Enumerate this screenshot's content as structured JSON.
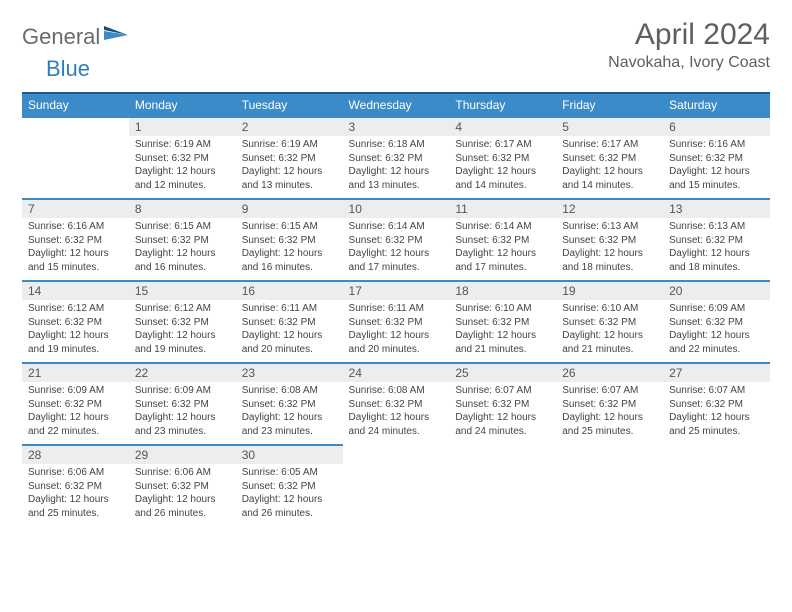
{
  "logo": {
    "part1": "General",
    "part2": "Blue"
  },
  "title": "April 2024",
  "subtitle": "Navokaha, Ivory Coast",
  "colors": {
    "header_bg": "#3b8bc8",
    "header_border": "#1a5a8a",
    "row_border": "#3b8bc8",
    "daynum_bg": "#ededed",
    "text": "#444444",
    "title_color": "#5f5f5f",
    "logo_gray": "#6b6b6b",
    "logo_blue": "#2f7fbf"
  },
  "weekdays": [
    "Sunday",
    "Monday",
    "Tuesday",
    "Wednesday",
    "Thursday",
    "Friday",
    "Saturday"
  ],
  "weeks": [
    [
      null,
      {
        "n": "1",
        "sr": "Sunrise: 6:19 AM",
        "ss": "Sunset: 6:32 PM",
        "dl": "Daylight: 12 hours and 12 minutes."
      },
      {
        "n": "2",
        "sr": "Sunrise: 6:19 AM",
        "ss": "Sunset: 6:32 PM",
        "dl": "Daylight: 12 hours and 13 minutes."
      },
      {
        "n": "3",
        "sr": "Sunrise: 6:18 AM",
        "ss": "Sunset: 6:32 PM",
        "dl": "Daylight: 12 hours and 13 minutes."
      },
      {
        "n": "4",
        "sr": "Sunrise: 6:17 AM",
        "ss": "Sunset: 6:32 PM",
        "dl": "Daylight: 12 hours and 14 minutes."
      },
      {
        "n": "5",
        "sr": "Sunrise: 6:17 AM",
        "ss": "Sunset: 6:32 PM",
        "dl": "Daylight: 12 hours and 14 minutes."
      },
      {
        "n": "6",
        "sr": "Sunrise: 6:16 AM",
        "ss": "Sunset: 6:32 PM",
        "dl": "Daylight: 12 hours and 15 minutes."
      }
    ],
    [
      {
        "n": "7",
        "sr": "Sunrise: 6:16 AM",
        "ss": "Sunset: 6:32 PM",
        "dl": "Daylight: 12 hours and 15 minutes."
      },
      {
        "n": "8",
        "sr": "Sunrise: 6:15 AM",
        "ss": "Sunset: 6:32 PM",
        "dl": "Daylight: 12 hours and 16 minutes."
      },
      {
        "n": "9",
        "sr": "Sunrise: 6:15 AM",
        "ss": "Sunset: 6:32 PM",
        "dl": "Daylight: 12 hours and 16 minutes."
      },
      {
        "n": "10",
        "sr": "Sunrise: 6:14 AM",
        "ss": "Sunset: 6:32 PM",
        "dl": "Daylight: 12 hours and 17 minutes."
      },
      {
        "n": "11",
        "sr": "Sunrise: 6:14 AM",
        "ss": "Sunset: 6:32 PM",
        "dl": "Daylight: 12 hours and 17 minutes."
      },
      {
        "n": "12",
        "sr": "Sunrise: 6:13 AM",
        "ss": "Sunset: 6:32 PM",
        "dl": "Daylight: 12 hours and 18 minutes."
      },
      {
        "n": "13",
        "sr": "Sunrise: 6:13 AM",
        "ss": "Sunset: 6:32 PM",
        "dl": "Daylight: 12 hours and 18 minutes."
      }
    ],
    [
      {
        "n": "14",
        "sr": "Sunrise: 6:12 AM",
        "ss": "Sunset: 6:32 PM",
        "dl": "Daylight: 12 hours and 19 minutes."
      },
      {
        "n": "15",
        "sr": "Sunrise: 6:12 AM",
        "ss": "Sunset: 6:32 PM",
        "dl": "Daylight: 12 hours and 19 minutes."
      },
      {
        "n": "16",
        "sr": "Sunrise: 6:11 AM",
        "ss": "Sunset: 6:32 PM",
        "dl": "Daylight: 12 hours and 20 minutes."
      },
      {
        "n": "17",
        "sr": "Sunrise: 6:11 AM",
        "ss": "Sunset: 6:32 PM",
        "dl": "Daylight: 12 hours and 20 minutes."
      },
      {
        "n": "18",
        "sr": "Sunrise: 6:10 AM",
        "ss": "Sunset: 6:32 PM",
        "dl": "Daylight: 12 hours and 21 minutes."
      },
      {
        "n": "19",
        "sr": "Sunrise: 6:10 AM",
        "ss": "Sunset: 6:32 PM",
        "dl": "Daylight: 12 hours and 21 minutes."
      },
      {
        "n": "20",
        "sr": "Sunrise: 6:09 AM",
        "ss": "Sunset: 6:32 PM",
        "dl": "Daylight: 12 hours and 22 minutes."
      }
    ],
    [
      {
        "n": "21",
        "sr": "Sunrise: 6:09 AM",
        "ss": "Sunset: 6:32 PM",
        "dl": "Daylight: 12 hours and 22 minutes."
      },
      {
        "n": "22",
        "sr": "Sunrise: 6:09 AM",
        "ss": "Sunset: 6:32 PM",
        "dl": "Daylight: 12 hours and 23 minutes."
      },
      {
        "n": "23",
        "sr": "Sunrise: 6:08 AM",
        "ss": "Sunset: 6:32 PM",
        "dl": "Daylight: 12 hours and 23 minutes."
      },
      {
        "n": "24",
        "sr": "Sunrise: 6:08 AM",
        "ss": "Sunset: 6:32 PM",
        "dl": "Daylight: 12 hours and 24 minutes."
      },
      {
        "n": "25",
        "sr": "Sunrise: 6:07 AM",
        "ss": "Sunset: 6:32 PM",
        "dl": "Daylight: 12 hours and 24 minutes."
      },
      {
        "n": "26",
        "sr": "Sunrise: 6:07 AM",
        "ss": "Sunset: 6:32 PM",
        "dl": "Daylight: 12 hours and 25 minutes."
      },
      {
        "n": "27",
        "sr": "Sunrise: 6:07 AM",
        "ss": "Sunset: 6:32 PM",
        "dl": "Daylight: 12 hours and 25 minutes."
      }
    ],
    [
      {
        "n": "28",
        "sr": "Sunrise: 6:06 AM",
        "ss": "Sunset: 6:32 PM",
        "dl": "Daylight: 12 hours and 25 minutes."
      },
      {
        "n": "29",
        "sr": "Sunrise: 6:06 AM",
        "ss": "Sunset: 6:32 PM",
        "dl": "Daylight: 12 hours and 26 minutes."
      },
      {
        "n": "30",
        "sr": "Sunrise: 6:05 AM",
        "ss": "Sunset: 6:32 PM",
        "dl": "Daylight: 12 hours and 26 minutes."
      },
      null,
      null,
      null,
      null
    ]
  ]
}
